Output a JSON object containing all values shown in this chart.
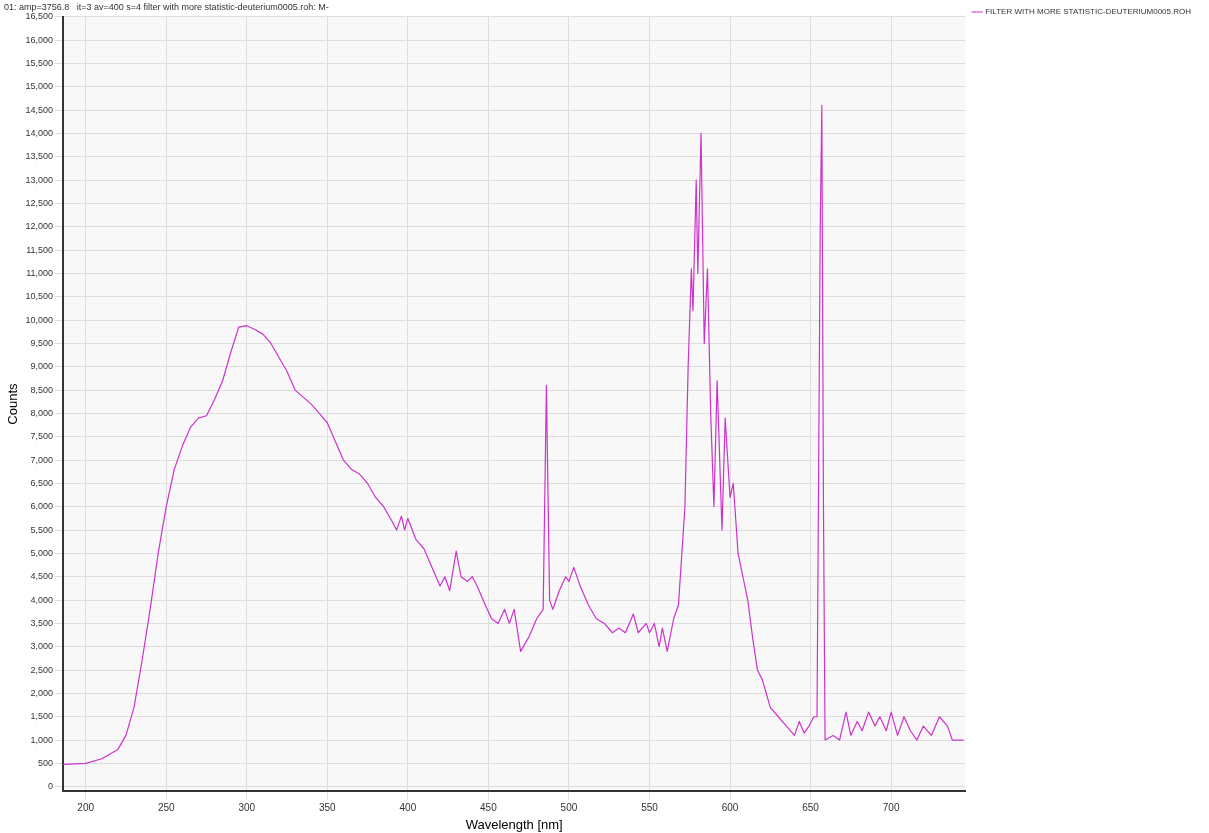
{
  "chart_data": {
    "type": "line",
    "title": "01: amp=3756.8   it=3 av=400 s=4 filter with more statistic-deuterium0005.roh: M-",
    "xlabel": "Wavelength [nm]",
    "ylabel": "Counts",
    "xlim": [
      186,
      746
    ],
    "xticks": [
      200,
      250,
      300,
      350,
      400,
      450,
      500,
      550,
      600,
      650,
      700
    ],
    "ylim": [
      -100,
      16500
    ],
    "yticks": [
      {
        "value": 0,
        "label": "0"
      },
      {
        "value": 500,
        "label": "500"
      },
      {
        "value": 1000,
        "label": "1,000"
      },
      {
        "value": 1500,
        "label": "1,500"
      },
      {
        "value": 2000,
        "label": "2,000"
      },
      {
        "value": 2500,
        "label": "2,500"
      },
      {
        "value": 3000,
        "label": "3,000"
      },
      {
        "value": 3500,
        "label": "3,500"
      },
      {
        "value": 4000,
        "label": "4,000"
      },
      {
        "value": 4500,
        "label": "4,500"
      },
      {
        "value": 5000,
        "label": "5,000"
      },
      {
        "value": 5500,
        "label": "5,500"
      },
      {
        "value": 6000,
        "label": "6,000"
      },
      {
        "value": 6500,
        "label": "6,500"
      },
      {
        "value": 7000,
        "label": "7,000"
      },
      {
        "value": 7500,
        "label": "7,500"
      },
      {
        "value": 8000,
        "label": "8,000"
      },
      {
        "value": 8500,
        "label": "8,500"
      },
      {
        "value": 9000,
        "label": "9,000"
      },
      {
        "value": 9500,
        "label": "9,500"
      },
      {
        "value": 10000,
        "label": "10,000"
      },
      {
        "value": 10500,
        "label": "10,500"
      },
      {
        "value": 11000,
        "label": "11,000"
      },
      {
        "value": 11500,
        "label": "11,500"
      },
      {
        "value": 12000,
        "label": "12,000"
      },
      {
        "value": 12500,
        "label": "12,500"
      },
      {
        "value": 13000,
        "label": "13,000"
      },
      {
        "value": 13500,
        "label": "13,500"
      },
      {
        "value": 14000,
        "label": "14,000"
      },
      {
        "value": 14500,
        "label": "14,500"
      },
      {
        "value": 15000,
        "label": "15,000"
      },
      {
        "value": 15500,
        "label": "15,500"
      },
      {
        "value": 16000,
        "label": "16,000"
      },
      {
        "value": 16500,
        "label": "16,500"
      }
    ],
    "grid": true,
    "legend": "top right",
    "marker": "none",
    "line_style": "solid",
    "series": [
      {
        "name": "FILTER WITH MORE STATISTIC-DEUTERIUM0005.ROH",
        "color": "#cc33cc",
        "x": [
          186,
          200,
          210,
          220,
          225,
          230,
          235,
          240,
          245,
          250,
          255,
          260,
          265,
          270,
          275,
          280,
          285,
          290,
          295,
          300,
          305,
          310,
          315,
          320,
          325,
          330,
          335,
          340,
          345,
          350,
          355,
          360,
          365,
          370,
          375,
          380,
          385,
          390,
          393,
          396,
          398,
          400,
          405,
          410,
          415,
          420,
          423,
          426,
          430,
          433,
          437,
          440,
          443,
          448,
          452,
          456,
          460,
          463,
          466,
          470,
          475,
          480,
          484,
          486,
          488,
          490,
          494,
          498,
          500,
          503,
          507,
          512,
          517,
          522,
          527,
          531,
          535,
          540,
          543,
          548,
          550,
          553,
          556,
          558,
          561,
          565,
          568,
          572,
          574,
          576,
          577,
          579,
          580,
          582,
          584,
          586,
          588,
          590,
          592,
          595,
          597,
          600,
          602,
          605,
          608,
          611,
          614,
          617,
          620,
          625,
          630,
          635,
          640,
          643,
          646,
          649,
          652,
          654,
          656,
          657,
          658,
          659,
          664,
          668,
          672,
          675,
          679,
          682,
          686,
          690,
          693,
          697,
          700,
          704,
          708,
          712,
          716,
          720,
          725,
          730,
          735,
          738,
          745
        ],
        "values": [
          480,
          500,
          600,
          800,
          1100,
          1700,
          2700,
          3800,
          5000,
          6000,
          6800,
          7300,
          7700,
          7900,
          7950,
          8300,
          8700,
          9300,
          9850,
          9880,
          9800,
          9700,
          9500,
          9200,
          8900,
          8500,
          8350,
          8200,
          8000,
          7800,
          7400,
          7000,
          6800,
          6700,
          6500,
          6200,
          6000,
          5700,
          5500,
          5800,
          5500,
          5750,
          5300,
          5100,
          4700,
          4300,
          4500,
          4200,
          5050,
          4500,
          4400,
          4500,
          4300,
          3900,
          3600,
          3500,
          3800,
          3500,
          3800,
          2900,
          3200,
          3600,
          3800,
          8600,
          4000,
          3800,
          4200,
          4500,
          4400,
          4700,
          4300,
          3900,
          3600,
          3500,
          3300,
          3400,
          3300,
          3700,
          3300,
          3500,
          3300,
          3500,
          3000,
          3400,
          2900,
          3600,
          3900,
          6000,
          9000,
          11100,
          10200,
          13000,
          11000,
          14000,
          9500,
          11100,
          8000,
          6000,
          8700,
          5500,
          7900,
          6200,
          6500,
          5000,
          4500,
          4000,
          3200,
          2500,
          2300,
          1700,
          1500,
          1300,
          1100,
          1400,
          1150,
          1300,
          1500,
          1500,
          12000,
          14600,
          6000,
          1000,
          1100,
          1000,
          1600,
          1100,
          1400,
          1200,
          1600,
          1300,
          1500,
          1200,
          1600,
          1100,
          1500,
          1200,
          1000,
          1300,
          1100,
          1500,
          1300,
          1000,
          1000
        ]
      }
    ]
  }
}
